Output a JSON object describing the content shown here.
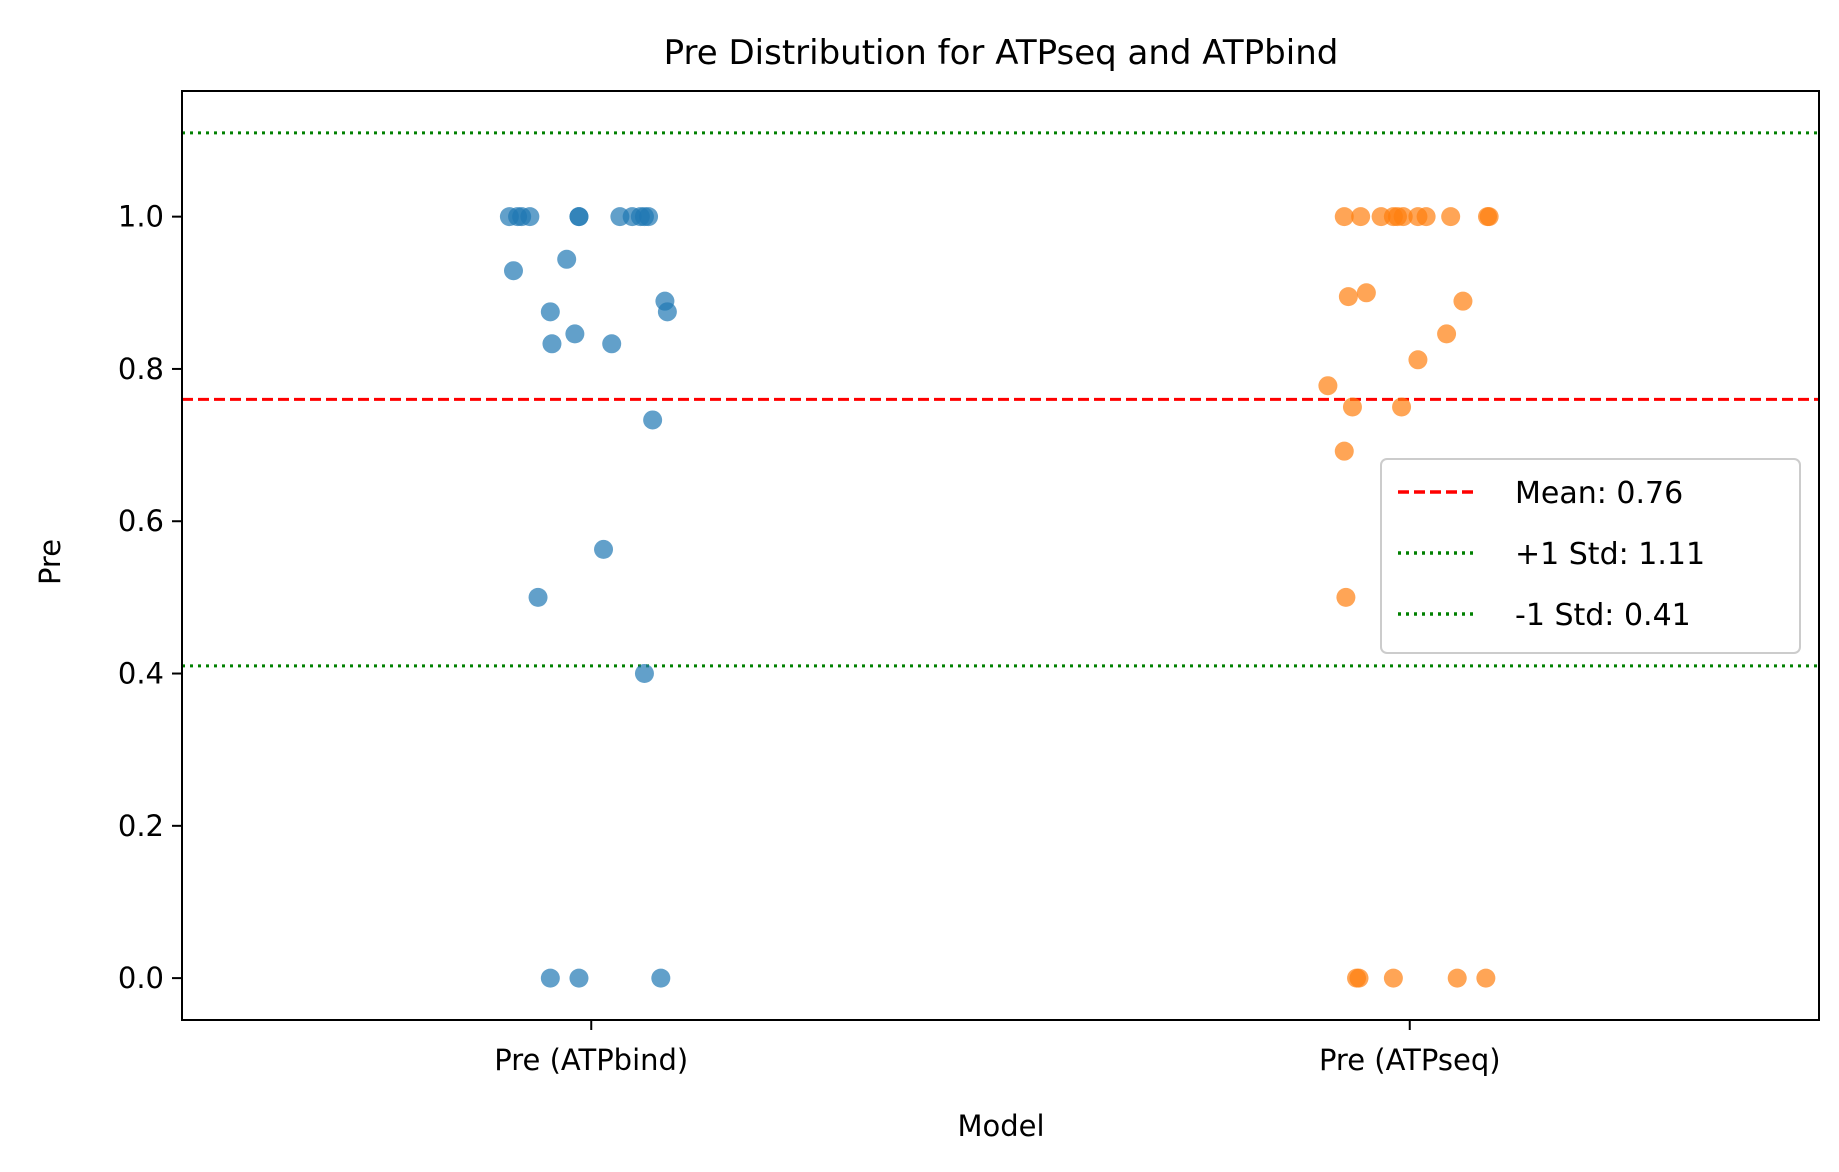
{
  "chart_data": {
    "type": "scatter",
    "title": "Pre Distribution for ATPseq and ATPbind",
    "xlabel": "Model",
    "ylabel": "Pre",
    "categories": [
      "Pre (ATPbind)",
      "Pre (ATPseq)"
    ],
    "ylim": [
      -0.055,
      1.165
    ],
    "yticks": [
      0.0,
      0.2,
      0.4,
      0.6,
      0.8,
      1.0
    ],
    "ytick_labels": [
      "0.0",
      "0.2",
      "0.4",
      "0.6",
      "0.8",
      "1.0"
    ],
    "grid": false,
    "legend_position": "center-right",
    "series": [
      {
        "category": "Pre (ATPbind)",
        "color": "#1f77b4",
        "points": [
          {
            "x": -0.1,
            "y": 1.0
          },
          {
            "x": -0.09,
            "y": 1.0
          },
          {
            "x": -0.085,
            "y": 1.0
          },
          {
            "x": -0.075,
            "y": 1.0
          },
          {
            "x": -0.015,
            "y": 1.0
          },
          {
            "x": -0.015,
            "y": 1.0
          },
          {
            "x": 0.035,
            "y": 1.0
          },
          {
            "x": 0.05,
            "y": 1.0
          },
          {
            "x": 0.06,
            "y": 1.0
          },
          {
            "x": 0.065,
            "y": 1.0
          },
          {
            "x": 0.07,
            "y": 1.0
          },
          {
            "x": -0.095,
            "y": 0.929
          },
          {
            "x": -0.03,
            "y": 0.944
          },
          {
            "x": 0.09,
            "y": 0.889
          },
          {
            "x": -0.05,
            "y": 0.875
          },
          {
            "x": 0.093,
            "y": 0.875
          },
          {
            "x": -0.048,
            "y": 0.833
          },
          {
            "x": -0.02,
            "y": 0.846
          },
          {
            "x": 0.025,
            "y": 0.833
          },
          {
            "x": 0.075,
            "y": 0.733
          },
          {
            "x": 0.015,
            "y": 0.563
          },
          {
            "x": -0.065,
            "y": 0.5
          },
          {
            "x": 0.065,
            "y": 0.4
          },
          {
            "x": -0.05,
            "y": 0.0
          },
          {
            "x": -0.015,
            "y": 0.0
          },
          {
            "x": 0.085,
            "y": 0.0
          }
        ]
      },
      {
        "category": "Pre (ATPseq)",
        "color": "#ff7f0e",
        "points": [
          {
            "x": -0.08,
            "y": 1.0
          },
          {
            "x": -0.06,
            "y": 1.0
          },
          {
            "x": -0.035,
            "y": 1.0
          },
          {
            "x": -0.02,
            "y": 1.0
          },
          {
            "x": -0.015,
            "y": 1.0
          },
          {
            "x": -0.008,
            "y": 1.0
          },
          {
            "x": 0.01,
            "y": 1.0
          },
          {
            "x": 0.02,
            "y": 1.0
          },
          {
            "x": 0.05,
            "y": 1.0
          },
          {
            "x": 0.095,
            "y": 1.0
          },
          {
            "x": 0.097,
            "y": 1.0
          },
          {
            "x": -0.075,
            "y": 0.895
          },
          {
            "x": -0.053,
            "y": 0.9
          },
          {
            "x": 0.065,
            "y": 0.889
          },
          {
            "x": 0.045,
            "y": 0.846
          },
          {
            "x": 0.01,
            "y": 0.812
          },
          {
            "x": -0.1,
            "y": 0.778
          },
          {
            "x": -0.07,
            "y": 0.75
          },
          {
            "x": -0.01,
            "y": 0.75
          },
          {
            "x": -0.08,
            "y": 0.692
          },
          {
            "x": -0.078,
            "y": 0.5
          },
          {
            "x": -0.065,
            "y": 0.0
          },
          {
            "x": -0.062,
            "y": 0.0
          },
          {
            "x": -0.02,
            "y": 0.0
          },
          {
            "x": 0.058,
            "y": 0.0
          },
          {
            "x": 0.093,
            "y": 0.0
          }
        ]
      }
    ],
    "reference_lines": [
      {
        "label": "Mean: 0.76",
        "y": 0.76,
        "color": "#ff0000",
        "style": "dashed"
      },
      {
        "label": "+1 Std: 1.11",
        "y": 1.11,
        "color": "#008000",
        "style": "dotted"
      },
      {
        "label": "-1 Std: 0.41",
        "y": 0.41,
        "color": "#008000",
        "style": "dotted"
      }
    ]
  }
}
